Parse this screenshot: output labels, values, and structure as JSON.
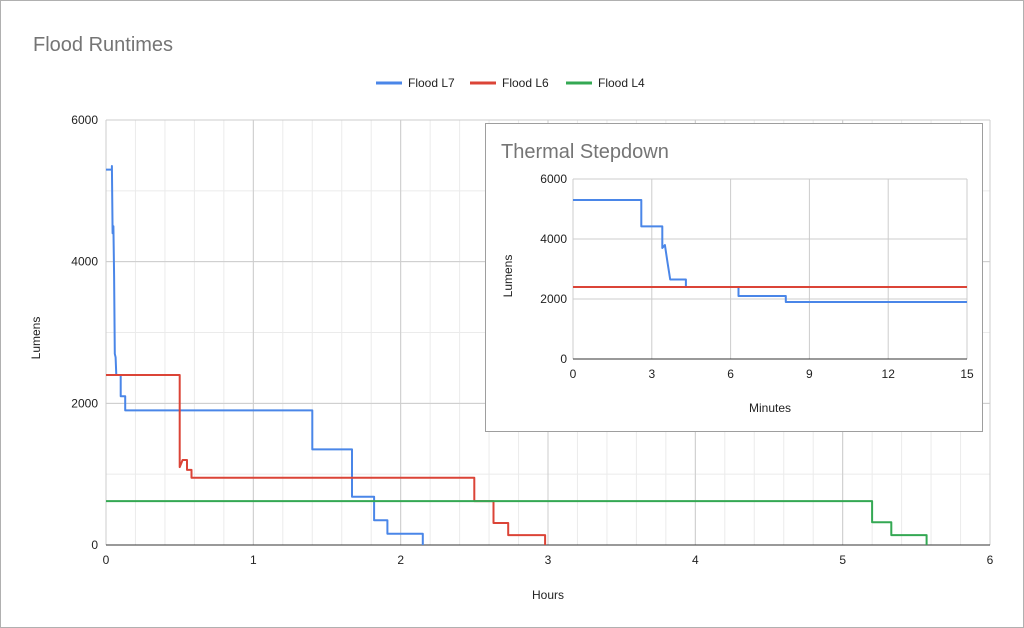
{
  "chart_data": [
    {
      "type": "line",
      "title": "Flood Runtimes",
      "xlabel": "Hours",
      "ylabel": "Lumens",
      "xlim": [
        0,
        6
      ],
      "ylim": [
        0,
        6000
      ],
      "xticks": [
        "0",
        "1",
        "2",
        "3",
        "4",
        "5",
        "6"
      ],
      "yticks": [
        "0",
        "2000",
        "4000",
        "6000"
      ],
      "grid": true,
      "legend": "top-center",
      "series": [
        {
          "name": "Flood L7",
          "color": "#4a86e8",
          "points": [
            [
              0,
              5300
            ],
            [
              0.04,
              5300
            ],
            [
              0.04,
              5350
            ],
            [
              0.045,
              4400
            ],
            [
              0.05,
              4500
            ],
            [
              0.055,
              3800
            ],
            [
              0.06,
              2700
            ],
            [
              0.065,
              2650
            ],
            [
              0.07,
              2400
            ],
            [
              0.1,
              2400
            ],
            [
              0.1,
              2100
            ],
            [
              0.13,
              2100
            ],
            [
              0.13,
              1900
            ],
            [
              1.4,
              1900
            ],
            [
              1.4,
              1350
            ],
            [
              1.67,
              1350
            ],
            [
              1.67,
              680
            ],
            [
              1.82,
              680
            ],
            [
              1.82,
              350
            ],
            [
              1.91,
              350
            ],
            [
              1.91,
              160
            ],
            [
              2.15,
              160
            ],
            [
              2.15,
              0
            ]
          ]
        },
        {
          "name": "Flood L6",
          "color": "#db4437",
          "points": [
            [
              0,
              2400
            ],
            [
              0.5,
              2400
            ],
            [
              0.5,
              1100
            ],
            [
              0.52,
              1200
            ],
            [
              0.55,
              1200
            ],
            [
              0.55,
              1060
            ],
            [
              0.58,
              1060
            ],
            [
              0.58,
              950
            ],
            [
              2.5,
              950
            ],
            [
              2.5,
              620
            ],
            [
              2.63,
              620
            ],
            [
              2.63,
              310
            ],
            [
              2.73,
              310
            ],
            [
              2.73,
              140
            ],
            [
              2.98,
              140
            ],
            [
              2.98,
              0
            ]
          ]
        },
        {
          "name": "Flood L4",
          "color": "#34a853",
          "points": [
            [
              0,
              620
            ],
            [
              5.2,
              620
            ],
            [
              5.2,
              320
            ],
            [
              5.33,
              320
            ],
            [
              5.33,
              140
            ],
            [
              5.57,
              140
            ],
            [
              5.57,
              0
            ]
          ]
        }
      ]
    },
    {
      "type": "line",
      "title": "Thermal Stepdown",
      "xlabel": "Minutes",
      "ylabel": "Lumens",
      "xlim": [
        0,
        15
      ],
      "ylim": [
        0,
        6000
      ],
      "xticks": [
        "0",
        "3",
        "6",
        "9",
        "12",
        "15"
      ],
      "yticks": [
        "0",
        "2000",
        "4000",
        "6000"
      ],
      "grid": true,
      "series": [
        {
          "color": "#4a86e8",
          "points": [
            [
              0,
              5300
            ],
            [
              2.6,
              5300
            ],
            [
              2.6,
              4420
            ],
            [
              3.4,
              4420
            ],
            [
              3.4,
              3700
            ],
            [
              3.5,
              3800
            ],
            [
              3.6,
              3200
            ],
            [
              3.7,
              2650
            ],
            [
              4.3,
              2650
            ],
            [
              4.3,
              2400
            ],
            [
              6.3,
              2400
            ],
            [
              6.3,
              2100
            ],
            [
              8.1,
              2100
            ],
            [
              8.1,
              1900
            ],
            [
              15,
              1900
            ]
          ]
        },
        {
          "color": "#db4437",
          "points": [
            [
              0,
              2400
            ],
            [
              15,
              2400
            ]
          ]
        }
      ]
    }
  ]
}
